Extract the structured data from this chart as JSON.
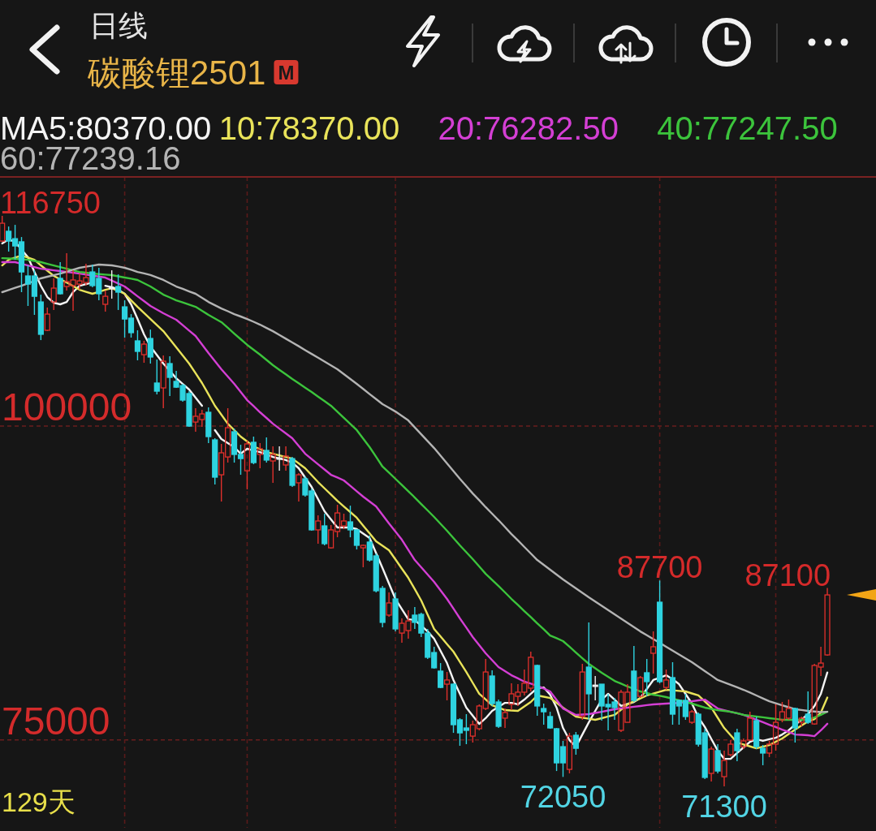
{
  "chart_data": {
    "type": "candlestick",
    "title": "碳酸锂2501",
    "subtitle": "日线",
    "categories": [
      null,
      null,
      null,
      null,
      null,
      null,
      null,
      null,
      null,
      null,
      null,
      null,
      null,
      null,
      null,
      null,
      null,
      null,
      null,
      null,
      null,
      null,
      null,
      null,
      null,
      null,
      null,
      null,
      null,
      null,
      null,
      null,
      null,
      null,
      null,
      null,
      null,
      null,
      null,
      null,
      null,
      null,
      null,
      null,
      null,
      null,
      null,
      null,
      null,
      null,
      null,
      null,
      null,
      null,
      null,
      null,
      null,
      null,
      null,
      null,
      null,
      null,
      null,
      null,
      null,
      null,
      null,
      null,
      null,
      null,
      null,
      null,
      null,
      null,
      null,
      null,
      null,
      null,
      null,
      null,
      null,
      null,
      null,
      null,
      null,
      null,
      null,
      null,
      null,
      null,
      null,
      null,
      null,
      null,
      null,
      null,
      null,
      null,
      null,
      null,
      null,
      null,
      null,
      null,
      null,
      null,
      null,
      null,
      null,
      null,
      null,
      null,
      null,
      null,
      null,
      null,
      null,
      null,
      null,
      null,
      null,
      null,
      null,
      null,
      null,
      null,
      null,
      null,
      null
    ],
    "ohlc": [
      [
        114740,
        116750,
        114680,
        116160
      ],
      [
        115520,
        115900,
        113900,
        114740
      ],
      [
        114930,
        116030,
        113250,
        114350
      ],
      [
        114680,
        115060,
        110670,
        112280
      ],
      [
        111960,
        112800,
        109570,
        111310
      ],
      [
        111960,
        112410,
        108860,
        110340
      ],
      [
        109890,
        110470,
        106850,
        107310
      ],
      [
        107630,
        109440,
        107560,
        108920
      ],
      [
        109890,
        111770,
        109250,
        110990
      ],
      [
        111770,
        113060,
        110470,
        110540
      ],
      [
        111120,
        113770,
        110800,
        111510
      ],
      [
        111190,
        112410,
        109180,
        111640
      ],
      [
        111310,
        112150,
        110860,
        111570
      ],
      [
        111440,
        112930,
        111190,
        111830
      ],
      [
        112280,
        112870,
        111060,
        111190
      ],
      [
        111770,
        112610,
        110020,
        110540
      ],
      [
        109700,
        110800,
        109120,
        110340
      ],
      [
        110990,
        112410,
        110150,
        110990
      ],
      [
        111120,
        112090,
        109250,
        110670
      ],
      [
        109500,
        110020,
        107050,
        108530
      ],
      [
        108600,
        108920,
        107050,
        107440
      ],
      [
        106790,
        107630,
        105240,
        105950
      ],
      [
        105690,
        106790,
        105040,
        106530
      ],
      [
        106980,
        107690,
        104980,
        105500
      ],
      [
        103430,
        105300,
        102520,
        102780
      ],
      [
        103040,
        105630,
        101420,
        105170
      ],
      [
        104980,
        105560,
        102390,
        103880
      ],
      [
        103560,
        104400,
        103040,
        103100
      ],
      [
        103230,
        103360,
        101940,
        102070
      ],
      [
        102590,
        102780,
        99940,
        100000
      ],
      [
        100320,
        101420,
        99550,
        100780
      ],
      [
        100520,
        101290,
        99940,
        100970
      ],
      [
        101100,
        101490,
        98640,
        99160
      ],
      [
        98900,
        99030,
        95350,
        95930
      ],
      [
        96120,
        98580,
        93990,
        97870
      ],
      [
        97540,
        101420,
        97090,
        99870
      ],
      [
        99550,
        99810,
        97090,
        97740
      ],
      [
        97740,
        98510,
        96120,
        97410
      ],
      [
        96440,
        98840,
        94960,
        98580
      ],
      [
        98710,
        99160,
        96960,
        97090
      ],
      [
        97740,
        98640,
        96640,
        98190
      ],
      [
        98060,
        99100,
        97090,
        97290
      ],
      [
        97220,
        98380,
        95480,
        97740
      ],
      [
        97410,
        98380,
        96440,
        97410
      ],
      [
        96900,
        98380,
        96440,
        97610
      ],
      [
        97410,
        97540,
        95150,
        95280
      ],
      [
        95480,
        96250,
        93990,
        96120
      ],
      [
        95800,
        95990,
        94380,
        94510
      ],
      [
        94830,
        95020,
        91660,
        91730
      ],
      [
        91730,
        92890,
        90630,
        92440
      ],
      [
        92050,
        93020,
        90500,
        90630
      ],
      [
        90300,
        92110,
        90240,
        91730
      ],
      [
        91600,
        93730,
        91140,
        93080
      ],
      [
        92050,
        93020,
        91790,
        92440
      ],
      [
        92370,
        93660,
        91140,
        91730
      ],
      [
        91730,
        91790,
        90170,
        90500
      ],
      [
        90300,
        90560,
        88750,
        90500
      ],
      [
        90760,
        91270,
        89200,
        89330
      ],
      [
        89660,
        89850,
        86750,
        86880
      ],
      [
        87070,
        87260,
        83970,
        84360
      ],
      [
        84940,
        86750,
        84810,
        85910
      ],
      [
        86230,
        86750,
        83640,
        83840
      ],
      [
        83510,
        84680,
        82740,
        84290
      ],
      [
        83710,
        85320,
        83060,
        84480
      ],
      [
        84940,
        85580,
        83840,
        84360
      ],
      [
        85000,
        85130,
        83190,
        83510
      ],
      [
        83510,
        83840,
        81450,
        81580
      ],
      [
        81960,
        82420,
        80670,
        80740
      ],
      [
        80480,
        81120,
        79120,
        79180
      ],
      [
        79440,
        80410,
        78150,
        79770
      ],
      [
        79440,
        79510,
        75560,
        76210
      ],
      [
        76600,
        76730,
        74530,
        75560
      ],
      [
        75950,
        77050,
        74660,
        75760
      ],
      [
        75300,
        76530,
        74790,
        76210
      ],
      [
        75890,
        77830,
        75760,
        77700
      ],
      [
        77500,
        81450,
        77370,
        80410
      ],
      [
        80090,
        80540,
        77700,
        77890
      ],
      [
        78020,
        78210,
        75950,
        76080
      ],
      [
        76730,
        77500,
        75950,
        77180
      ],
      [
        77830,
        79510,
        77370,
        78670
      ],
      [
        78470,
        79440,
        77700,
        78800
      ],
      [
        78800,
        80610,
        78540,
        79510
      ],
      [
        79120,
        82030,
        78860,
        81580
      ],
      [
        80930,
        80990,
        76920,
        77700
      ],
      [
        77500,
        77890,
        76210,
        77240
      ],
      [
        76860,
        77240,
        75890,
        75950
      ],
      [
        75890,
        75950,
        72520,
        73170
      ],
      [
        74460,
        74920,
        72050,
        73170
      ],
      [
        72650,
        75560,
        72330,
        75300
      ],
      [
        75370,
        75630,
        73820,
        74330
      ],
      [
        76860,
        81060,
        76600,
        80410
      ],
      [
        80800,
        84360,
        76600,
        78670
      ],
      [
        79310,
        80090,
        78150,
        79310
      ],
      [
        79440,
        79440,
        76530,
        77700
      ],
      [
        77830,
        78670,
        75760,
        77630
      ],
      [
        78020,
        78340,
        76600,
        77570
      ],
      [
        75760,
        78990,
        75630,
        78800
      ],
      [
        76400,
        79440,
        76400,
        78800
      ],
      [
        80480,
        82480,
        78020,
        78150
      ],
      [
        78470,
        80090,
        78340,
        79960
      ],
      [
        80350,
        81450,
        78470,
        79640
      ],
      [
        81900,
        83640,
        80280,
        82420
      ],
      [
        85970,
        87700,
        79510,
        79640
      ],
      [
        79180,
        80610,
        78990,
        79770
      ],
      [
        79960,
        81190,
        76210,
        77050
      ],
      [
        78150,
        78210,
        76210,
        77700
      ],
      [
        78150,
        78670,
        76600,
        76860
      ],
      [
        76400,
        77370,
        76270,
        77240
      ],
      [
        77050,
        77180,
        74460,
        74660
      ],
      [
        75560,
        75890,
        71880,
        72010
      ],
      [
        72330,
        74460,
        71680,
        74270
      ],
      [
        74140,
        74660,
        72330,
        72520
      ],
      [
        72070,
        74140,
        71300,
        73360
      ],
      [
        73820,
        74980,
        73690,
        74660
      ],
      [
        75560,
        75890,
        73300,
        74140
      ],
      [
        74460,
        75110,
        74270,
        74920
      ],
      [
        74980,
        77240,
        74920,
        76730
      ],
      [
        76530,
        76860,
        74270,
        74460
      ],
      [
        74330,
        74590,
        72980,
        73950
      ],
      [
        73950,
        74920,
        73620,
        74660
      ],
      [
        74660,
        77830,
        74140,
        76400
      ],
      [
        76600,
        78020,
        76400,
        77240
      ],
      [
        76730,
        78210,
        76600,
        77500
      ],
      [
        77500,
        77570,
        74790,
        75950
      ],
      [
        76400,
        76860,
        76080,
        76730
      ],
      [
        77050,
        78860,
        76270,
        76400
      ],
      [
        76270,
        81060,
        76210,
        80930
      ],
      [
        80800,
        82420,
        80090,
        81120
      ],
      [
        81770,
        87100,
        81700,
        86550
      ]
    ],
    "colors": [
      "#e0302c",
      "#2ed3e0",
      "#2ed3e0",
      "#2ed3e0",
      "#2ed3e0",
      "#2ed3e0",
      "#2ed3e0",
      "#e0302c",
      "#e0302c",
      "#2ed3e0",
      "#e0302c",
      "#e0302c",
      "#e0302c",
      "#e0302c",
      "#2ed3e0",
      "#2ed3e0",
      "#e0302c",
      "#f0f0f0",
      "#2ed3e0",
      "#2ed3e0",
      "#2ed3e0",
      "#2ed3e0",
      "#e0302c",
      "#2ed3e0",
      "#2ed3e0",
      "#e0302c",
      "#2ed3e0",
      "#2ed3e0",
      "#2ed3e0",
      "#2ed3e0",
      "#e0302c",
      "#e0302c",
      "#2ed3e0",
      "#2ed3e0",
      "#e0302c",
      "#e0302c",
      "#2ed3e0",
      "#2ed3e0",
      "#e0302c",
      "#2ed3e0",
      "#e0302c",
      "#2ed3e0",
      "#e0302c",
      "#f0f0f0",
      "#e0302c",
      "#2ed3e0",
      "#e0302c",
      "#2ed3e0",
      "#2ed3e0",
      "#e0302c",
      "#2ed3e0",
      "#e0302c",
      "#e0302c",
      "#e0302c",
      "#2ed3e0",
      "#2ed3e0",
      "#e0302c",
      "#2ed3e0",
      "#2ed3e0",
      "#2ed3e0",
      "#e0302c",
      "#2ed3e0",
      "#e0302c",
      "#e0302c",
      "#2ed3e0",
      "#2ed3e0",
      "#2ed3e0",
      "#2ed3e0",
      "#2ed3e0",
      "#e0302c",
      "#2ed3e0",
      "#2ed3e0",
      "#2ed3e0",
      "#e0302c",
      "#e0302c",
      "#e0302c",
      "#2ed3e0",
      "#2ed3e0",
      "#e0302c",
      "#e0302c",
      "#e0302c",
      "#e0302c",
      "#e0302c",
      "#2ed3e0",
      "#2ed3e0",
      "#2ed3e0",
      "#2ed3e0",
      "#2ed3e0",
      "#e0302c",
      "#2ed3e0",
      "#e0302c",
      "#2ed3e0",
      "#f0f0f0",
      "#2ed3e0",
      "#2ed3e0",
      "#2ed3e0",
      "#e0302c",
      "#e0302c",
      "#2ed3e0",
      "#e0302c",
      "#2ed3e0",
      "#e0302c",
      "#2ed3e0",
      "#e0302c",
      "#2ed3e0",
      "#2ed3e0",
      "#2ed3e0",
      "#e0302c",
      "#2ed3e0",
      "#2ed3e0",
      "#e0302c",
      "#2ed3e0",
      "#e0302c",
      "#e0302c",
      "#2ed3e0",
      "#e0302c",
      "#e0302c",
      "#2ed3e0",
      "#2ed3e0",
      "#e0302c",
      "#e0302c",
      "#e0302c",
      "#e0302c",
      "#2ed3e0",
      "#e0302c",
      "#2ed3e0",
      "#e0302c",
      "#e0302c",
      "#e0302c"
    ],
    "value_labels": [
      "116750",
      null,
      null,
      null,
      null,
      null,
      null,
      null,
      null,
      null,
      null,
      null,
      null,
      null,
      null,
      null,
      null,
      null,
      null,
      null,
      null,
      null,
      null,
      null,
      null,
      null,
      null,
      null,
      null,
      null,
      null,
      null,
      null,
      null,
      null,
      null,
      null,
      null,
      null,
      null,
      null,
      null,
      null,
      null,
      null,
      null,
      null,
      null,
      null,
      null,
      null,
      null,
      null,
      null,
      null,
      null,
      null,
      null,
      null,
      null,
      null,
      null,
      null,
      null,
      null,
      null,
      null,
      null,
      null,
      null,
      null,
      null,
      null,
      null,
      null,
      null,
      null,
      null,
      null,
      null,
      null,
      null,
      null,
      null,
      null,
      null,
      null,
      "72050",
      null,
      null,
      null,
      null,
      null,
      null,
      null,
      null,
      null,
      null,
      null,
      null,
      null,
      null,
      "87700",
      null,
      null,
      null,
      null,
      null,
      null,
      null,
      null,
      null,
      "71300",
      null,
      null,
      null,
      null,
      null,
      null,
      null,
      null,
      null,
      null,
      null,
      null,
      null,
      null,
      null,
      "87100"
    ],
    "series": [
      {
        "name": "MA5:80370.00",
        "type": "line",
        "color": "#f4f4f4",
        "values": [
          114550,
          114870,
          114680,
          114070,
          113450,
          112280,
          111180,
          110280,
          109830,
          109700,
          109890,
          110670,
          111180,
          111310,
          111440,
          null,
          111180,
          111060,
          110860,
          110540,
          109700,
          108530,
          107310,
          106340,
          105660,
          104980,
          104400,
          103810,
          103360,
          102910,
          102270,
          101620,
          null,
          99680,
          98970,
          98650,
          98320,
          97800,
          98190,
          98060,
          97930,
          97740,
          97540,
          97420,
          97290,
          97090,
          96640,
          95900,
          95150,
          94180,
          93210,
          92570,
          91920,
          91920,
          91920,
          91790,
          91440,
          91080,
          89890,
          88690,
          87460,
          86230,
          85420,
          84610,
          84550,
          84100,
          83640,
          83060,
          82090,
          81120,
          79770,
          78670,
          77570,
          76920,
          76270,
          76730,
          77310,
          77630,
          77950,
          77950,
          77830,
          78210,
          78670,
          79120,
          79180,
          78600,
          77570,
          75950,
          74980,
          74460,
          75430,
          76400,
          77310,
          78210,
          78670,
          78210,
          77700,
          77860,
          78020,
          78340,
          79060,
          79770,
          79960,
          80150,
          79830,
          79440,
          78670,
          77890,
          76790,
          76020,
          75080,
          74140,
          73490,
          73490,
          73950,
          74400,
          74850,
          75050,
          74920,
          75050,
          75170,
          75430,
          75760,
          76210,
          76600,
          77050,
          77700,
          78670,
          80370
        ]
      },
      {
        "name": "10:78370.00",
        "type": "line",
        "color": "#e9e35a",
        "values": [
          112800,
          113250,
          113420,
          113580,
          113420,
          113250,
          112800,
          112380,
          111960,
          111700,
          111440,
          111150,
          110860,
          110700,
          110540,
          110700,
          110860,
          110990,
          110770,
          110540,
          110020,
          109500,
          109020,
          108530,
          108050,
          107560,
          106920,
          106270,
          105630,
          104980,
          104210,
          103430,
          102530,
          101620,
          100910,
          100190,
          99680,
          99160,
          98770,
          98380,
          98160,
          97930,
          97800,
          97670,
          97540,
          97410,
          97030,
          96640,
          96090,
          95540,
          95040,
          94550,
          94050,
          93600,
          93150,
          92700,
          92070,
          91450,
          90820,
          90470,
          90110,
          89380,
          88640,
          87910,
          87010,
          86100,
          84970,
          83840,
          83240,
          82630,
          82030,
          81220,
          80410,
          79540,
          78670,
          78220,
          77760,
          77570,
          77370,
          77340,
          77310,
          77670,
          78020,
          78540,
          78440,
          78340,
          77960,
          77570,
          77220,
          76860,
          76770,
          76690,
          76600,
          76730,
          76860,
          76990,
          77410,
          77830,
          78070,
          78300,
          78540,
          78690,
          78840,
          78990,
          78950,
          78900,
          78860,
          78700,
          78540,
          78060,
          77570,
          76760,
          75950,
          75370,
          74790,
          74640,
          74480,
          74330,
          74460,
          74590,
          74850,
          75110,
          75470,
          75820,
          76150,
          76470,
          76660,
          77180,
          78370
        ]
      },
      {
        "name": "20:76282.50",
        "type": "line",
        "color": "#d43fd4",
        "values": [
          113060,
          113060,
          113060,
          112930,
          112800,
          112670,
          112540,
          112480,
          112410,
          112350,
          112280,
          112220,
          112150,
          112070,
          111990,
          111910,
          111830,
          111590,
          111360,
          111120,
          110730,
          110340,
          109960,
          109570,
          109280,
          108990,
          108730,
          108470,
          108040,
          107610,
          107180,
          106500,
          105820,
          105180,
          104530,
          103950,
          103360,
          102720,
          102070,
          101590,
          101100,
          100650,
          100190,
          99800,
          99420,
          99030,
          98420,
          97800,
          97380,
          96960,
          96540,
          96120,
          95900,
          95670,
          95240,
          94810,
          94380,
          93990,
          93600,
          92920,
          92240,
          91600,
          90950,
          90140,
          89330,
          88750,
          88170,
          87590,
          86910,
          86230,
          85460,
          84680,
          83940,
          83190,
          82550,
          81900,
          81350,
          80800,
          80480,
          80150,
          79900,
          79640,
          79480,
          79310,
          79090,
          78860,
          78180,
          77500,
          77250,
          76990,
          77020,
          77050,
          77150,
          77240,
          77340,
          77440,
          77510,
          77570,
          77640,
          77700,
          77770,
          77830,
          77860,
          77890,
          77920,
          77950,
          78020,
          78080,
          78150,
          78210,
          77860,
          77500,
          77370,
          77240,
          77120,
          76990,
          76800,
          76600,
          76410,
          76210,
          76020,
          75820,
          75630,
          75430,
          75400,
          75370,
          75300,
          75760,
          76282.5
        ]
      },
      {
        "name": "40:77247.50",
        "type": "line",
        "color": "#3cc43c",
        "values": [
          113380,
          113350,
          113320,
          113290,
          113250,
          113160,
          113060,
          112930,
          112800,
          112670,
          112540,
          112410,
          112280,
          112220,
          112150,
          112110,
          112070,
          112030,
          111930,
          111830,
          111740,
          111640,
          111380,
          111120,
          110800,
          110470,
          110250,
          110020,
          109850,
          109670,
          109500,
          109180,
          108860,
          108570,
          108280,
          107830,
          107370,
          106920,
          106470,
          106080,
          105690,
          105270,
          104850,
          104480,
          104120,
          103750,
          103410,
          103060,
          102720,
          102350,
          101990,
          101620,
          101140,
          100650,
          100170,
          99680,
          99000,
          98320,
          97550,
          96770,
          96290,
          95800,
          95300,
          94810,
          94310,
          93790,
          93280,
          92760,
          92210,
          91660,
          91080,
          90500,
          89950,
          89400,
          88820,
          88230,
          87750,
          87260,
          86750,
          86230,
          85750,
          85260,
          84780,
          84290,
          83810,
          83320,
          83100,
          82870,
          82420,
          81960,
          81510,
          81060,
          80710,
          80350,
          80030,
          79700,
          79480,
          79250,
          79060,
          78860,
          78730,
          78600,
          78510,
          78410,
          78280,
          78150,
          78020,
          77890,
          77730,
          77570,
          77470,
          77370,
          77310,
          77240,
          77120,
          76990,
          76930,
          76860,
          76800,
          76730,
          76670,
          76600,
          76600,
          76600,
          76600,
          76600,
          76790,
          76990,
          77247.5
        ]
      },
      {
        "name": "60:77239.16",
        "type": "line",
        "color": "#b4b4b4",
        "values": [
          110670,
          110840,
          111010,
          111180,
          111380,
          111570,
          111770,
          111900,
          112020,
          112150,
          112300,
          112460,
          112610,
          112700,
          112780,
          112870,
          112840,
          112800,
          112710,
          112610,
          112450,
          112280,
          112160,
          112030,
          111840,
          111640,
          111380,
          111120,
          110930,
          110730,
          110540,
          110220,
          109890,
          109630,
          109370,
          109150,
          108920,
          108730,
          108530,
          108310,
          108080,
          107820,
          107560,
          107260,
          106960,
          106660,
          106360,
          106050,
          105750,
          105450,
          105140,
          104840,
          104530,
          104140,
          103750,
          103360,
          102960,
          102550,
          102150,
          101750,
          101460,
          101160,
          100810,
          100450,
          99900,
          99350,
          98800,
          98250,
          97640,
          97030,
          96420,
          95800,
          95220,
          94630,
          94090,
          93540,
          93020,
          92500,
          91950,
          91400,
          90890,
          90370,
          89850,
          89330,
          88950,
          88560,
          88170,
          87780,
          87430,
          87070,
          86720,
          86360,
          86020,
          85680,
          85340,
          85000,
          84660,
          84320,
          83980,
          83640,
          83340,
          83030,
          82730,
          82420,
          82110,
          81800,
          81500,
          81190,
          80840,
          80480,
          80130,
          79770,
          79580,
          79380,
          79190,
          78990,
          78770,
          78540,
          78310,
          78080,
          77920,
          77760,
          77600,
          77440,
          77380,
          77310,
          77260,
          77210,
          77239.16
        ]
      }
    ],
    "ylim": [
      68000,
      119850
    ],
    "yticks": [
      75000,
      100000
    ],
    "grid": "y",
    "legend": "top left",
    "tick_labels": "y",
    "annotations": [
      "M",
      "129天"
    ]
  }
}
